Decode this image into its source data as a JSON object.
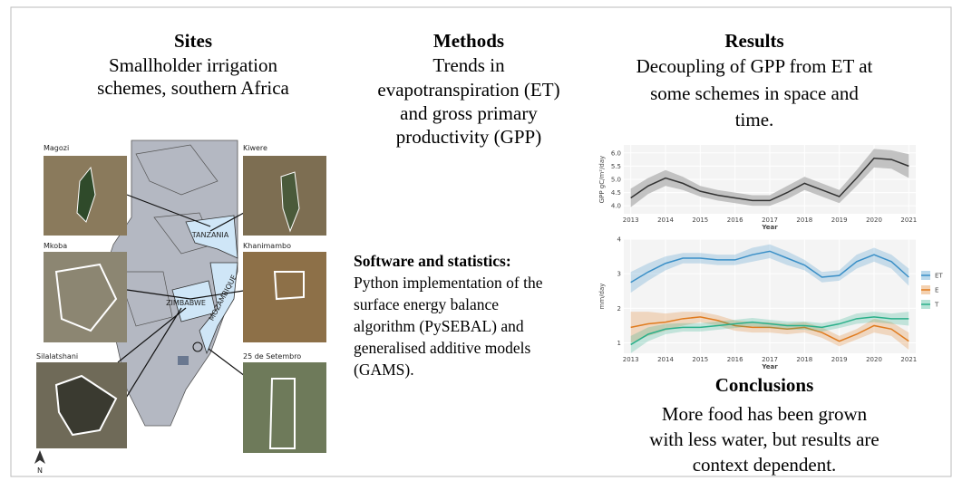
{
  "sites": {
    "title": "Sites",
    "lines": [
      "Smallholder irrigation",
      "schemes, southern Africa"
    ],
    "names": [
      "Magozi",
      "Kiwere",
      "Mkoba",
      "Khanimambo",
      "Silalatshani",
      "25 de Setembro"
    ],
    "countries": [
      "TANZANIA",
      "ZIMBABWE",
      "MOZAMBIQUE"
    ],
    "north": "N"
  },
  "methods": {
    "title": "Methods",
    "lines": [
      "Trends in",
      "evapotranspiration (ET)",
      "and gross primary",
      "productivity (GPP)"
    ]
  },
  "software": {
    "title": "Software and statistics:",
    "lines": [
      "Python implementation of the",
      "surface energy balance",
      "algorithm (PySEBAL) and",
      "generalised additive models",
      "(GAMS)."
    ]
  },
  "results": {
    "title": "Results",
    "lines": [
      "Decoupling of GPP from ET at",
      "some schemes in space and",
      "time."
    ]
  },
  "conclusions": {
    "title": "Conclusions",
    "lines": [
      "More food has been grown",
      "with less water, but results are",
      "context dependent."
    ]
  },
  "charts": [
    {
      "type": "line",
      "xlabel": "Year",
      "ylabel": "GPP gC/m²/day",
      "x": [
        2013,
        2013.5,
        2014,
        2014.5,
        2015,
        2015.5,
        2016,
        2016.5,
        2017,
        2017.5,
        2018,
        2018.5,
        2019,
        2019.5,
        2020,
        2020.5,
        2021
      ],
      "xlim": [
        2012.8,
        2021.2
      ],
      "xticks": [
        2013,
        2014,
        2015,
        2016,
        2017,
        2018,
        2019,
        2020,
        2021
      ],
      "ylim": [
        3.7,
        6.3
      ],
      "yticks": [
        {
          "value": 4,
          "label": "4.0"
        },
        4.5,
        {
          "value": 5,
          "label": "5.0"
        },
        5.5,
        {
          "value": 6,
          "label": "6.0"
        }
      ],
      "grid": true,
      "series": [
        {
          "color": "#333333",
          "band_color": "#bdbdbd",
          "values": [
            4.3,
            4.75,
            5.05,
            4.85,
            4.55,
            4.4,
            4.3,
            4.2,
            4.2,
            4.5,
            4.85,
            4.6,
            4.35,
            5.05,
            5.8,
            5.75,
            5.5
          ],
          "ci": [
            0.35,
            0.3,
            0.3,
            0.25,
            0.2,
            0.2,
            0.2,
            0.2,
            0.2,
            0.25,
            0.25,
            0.25,
            0.25,
            0.3,
            0.35,
            0.35,
            0.45
          ]
        }
      ]
    },
    {
      "type": "line",
      "xlabel": "Year",
      "ylabel": "mm/day",
      "x": [
        2013,
        2013.5,
        2014,
        2014.5,
        2015,
        2015.5,
        2016,
        2016.5,
        2017,
        2017.5,
        2018,
        2018.5,
        2019,
        2019.5,
        2020,
        2020.5,
        2021
      ],
      "xlim": [
        2012.8,
        2021.2
      ],
      "xticks": [
        2013,
        2014,
        2015,
        2016,
        2017,
        2018,
        2019,
        2020,
        2021
      ],
      "ylim": [
        0.7,
        4.0
      ],
      "yticks": [
        1,
        2,
        3,
        4
      ],
      "grid": true,
      "series": [
        {
          "name": "ET",
          "color": "#3a8fc7",
          "values": [
            2.75,
            3.05,
            3.3,
            3.45,
            3.45,
            3.4,
            3.4,
            3.55,
            3.65,
            3.45,
            3.25,
            2.9,
            2.95,
            3.35,
            3.55,
            3.35,
            2.9
          ],
          "ci": [
            0.3,
            0.25,
            0.2,
            0.15,
            0.15,
            0.15,
            0.15,
            0.2,
            0.2,
            0.2,
            0.15,
            0.15,
            0.15,
            0.2,
            0.2,
            0.2,
            0.25
          ]
        },
        {
          "name": "E",
          "color": "#e07b1e",
          "values": [
            1.45,
            1.55,
            1.6,
            1.7,
            1.75,
            1.65,
            1.5,
            1.45,
            1.45,
            1.4,
            1.45,
            1.3,
            1.05,
            1.25,
            1.5,
            1.4,
            1.05
          ],
          "ci": [
            0.45,
            0.35,
            0.25,
            0.2,
            0.15,
            0.15,
            0.15,
            0.15,
            0.15,
            0.15,
            0.15,
            0.15,
            0.15,
            0.15,
            0.2,
            0.2,
            0.25
          ]
        },
        {
          "name": "T",
          "color": "#2bb08a",
          "values": [
            0.95,
            1.25,
            1.4,
            1.45,
            1.45,
            1.5,
            1.55,
            1.6,
            1.55,
            1.5,
            1.5,
            1.45,
            1.55,
            1.7,
            1.75,
            1.7,
            1.7
          ],
          "ci": [
            0.25,
            0.2,
            0.15,
            0.12,
            0.12,
            0.12,
            0.12,
            0.12,
            0.12,
            0.12,
            0.12,
            0.12,
            0.12,
            0.15,
            0.15,
            0.15,
            0.2
          ]
        }
      ]
    }
  ]
}
